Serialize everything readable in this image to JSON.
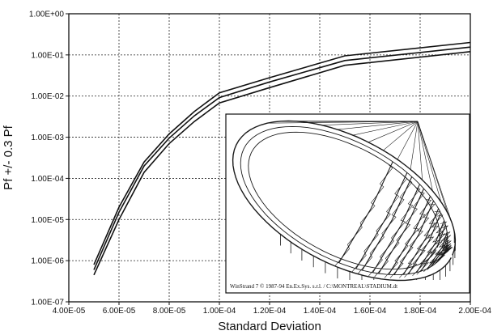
{
  "chart_data": {
    "type": "line",
    "xlabel": "Standard Deviation",
    "ylabel": "Pf +/- 0.3 Pf",
    "x_tick_labels": [
      "4.00E-05",
      "6.00E-05",
      "8.00E-05",
      "1.00E-04",
      "1.20E-04",
      "1.40E-04",
      "1.60E-04",
      "1.80E-04",
      "2.00E-04"
    ],
    "y_tick_labels": [
      "1.00E+00",
      "1.00E-01",
      "1.00E-02",
      "1.00E-03",
      "1.00E-04",
      "1.00E-05",
      "1.00E-06",
      "1.00E-07"
    ],
    "xlim": [
      4e-05,
      0.0002
    ],
    "ylim": [
      1e-07,
      1
    ],
    "yscale": "log",
    "grid": true,
    "x": [
      5e-05,
      6e-05,
      7e-05,
      8e-05,
      9e-05,
      0.0001,
      0.00012,
      0.00015,
      0.0002
    ],
    "series": [
      {
        "values": [
          8e-07,
          2e-05,
          0.00025,
          0.0012,
          0.0042,
          0.012,
          0.028,
          0.095,
          0.2
        ]
      },
      {
        "values": [
          6e-07,
          1.5e-05,
          0.0002,
          0.00095,
          0.0033,
          0.0092,
          0.022,
          0.073,
          0.155
        ]
      },
      {
        "values": [
          4.5e-07,
          1e-05,
          0.00014,
          0.0007,
          0.0024,
          0.0068,
          0.016,
          0.056,
          0.12
        ]
      }
    ],
    "inset_caption": "WinStrand 7 © 1987-94 En.Ex.Sys. s.r.l. / C:\\MONTREAL\\STADIUM.dt"
  },
  "colors": {
    "line": "#111111",
    "grid": "#222222",
    "background": "#ffffff"
  }
}
